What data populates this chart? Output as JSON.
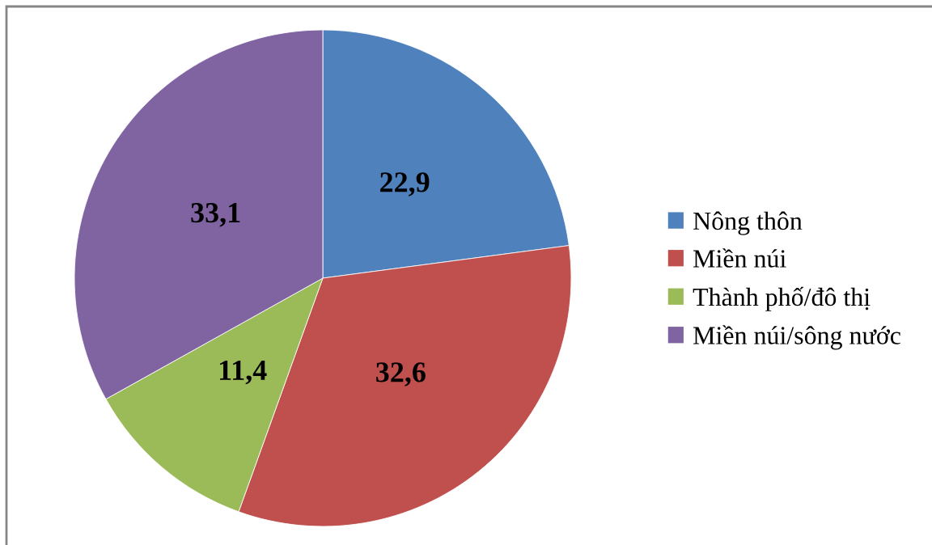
{
  "chart_data": {
    "type": "pie",
    "categories": [
      "Nông thôn",
      "Miền núi",
      "Thành phố/đô thị",
      "Miền núi/sông nước"
    ],
    "values": [
      22.9,
      32.6,
      11.4,
      33.1
    ],
    "value_labels": [
      "22,9",
      "32,6",
      "11,4",
      "33,1"
    ],
    "colors": [
      "#4f81bd",
      "#c0504d",
      "#9bbb59",
      "#8064a2"
    ],
    "legend": "right"
  }
}
